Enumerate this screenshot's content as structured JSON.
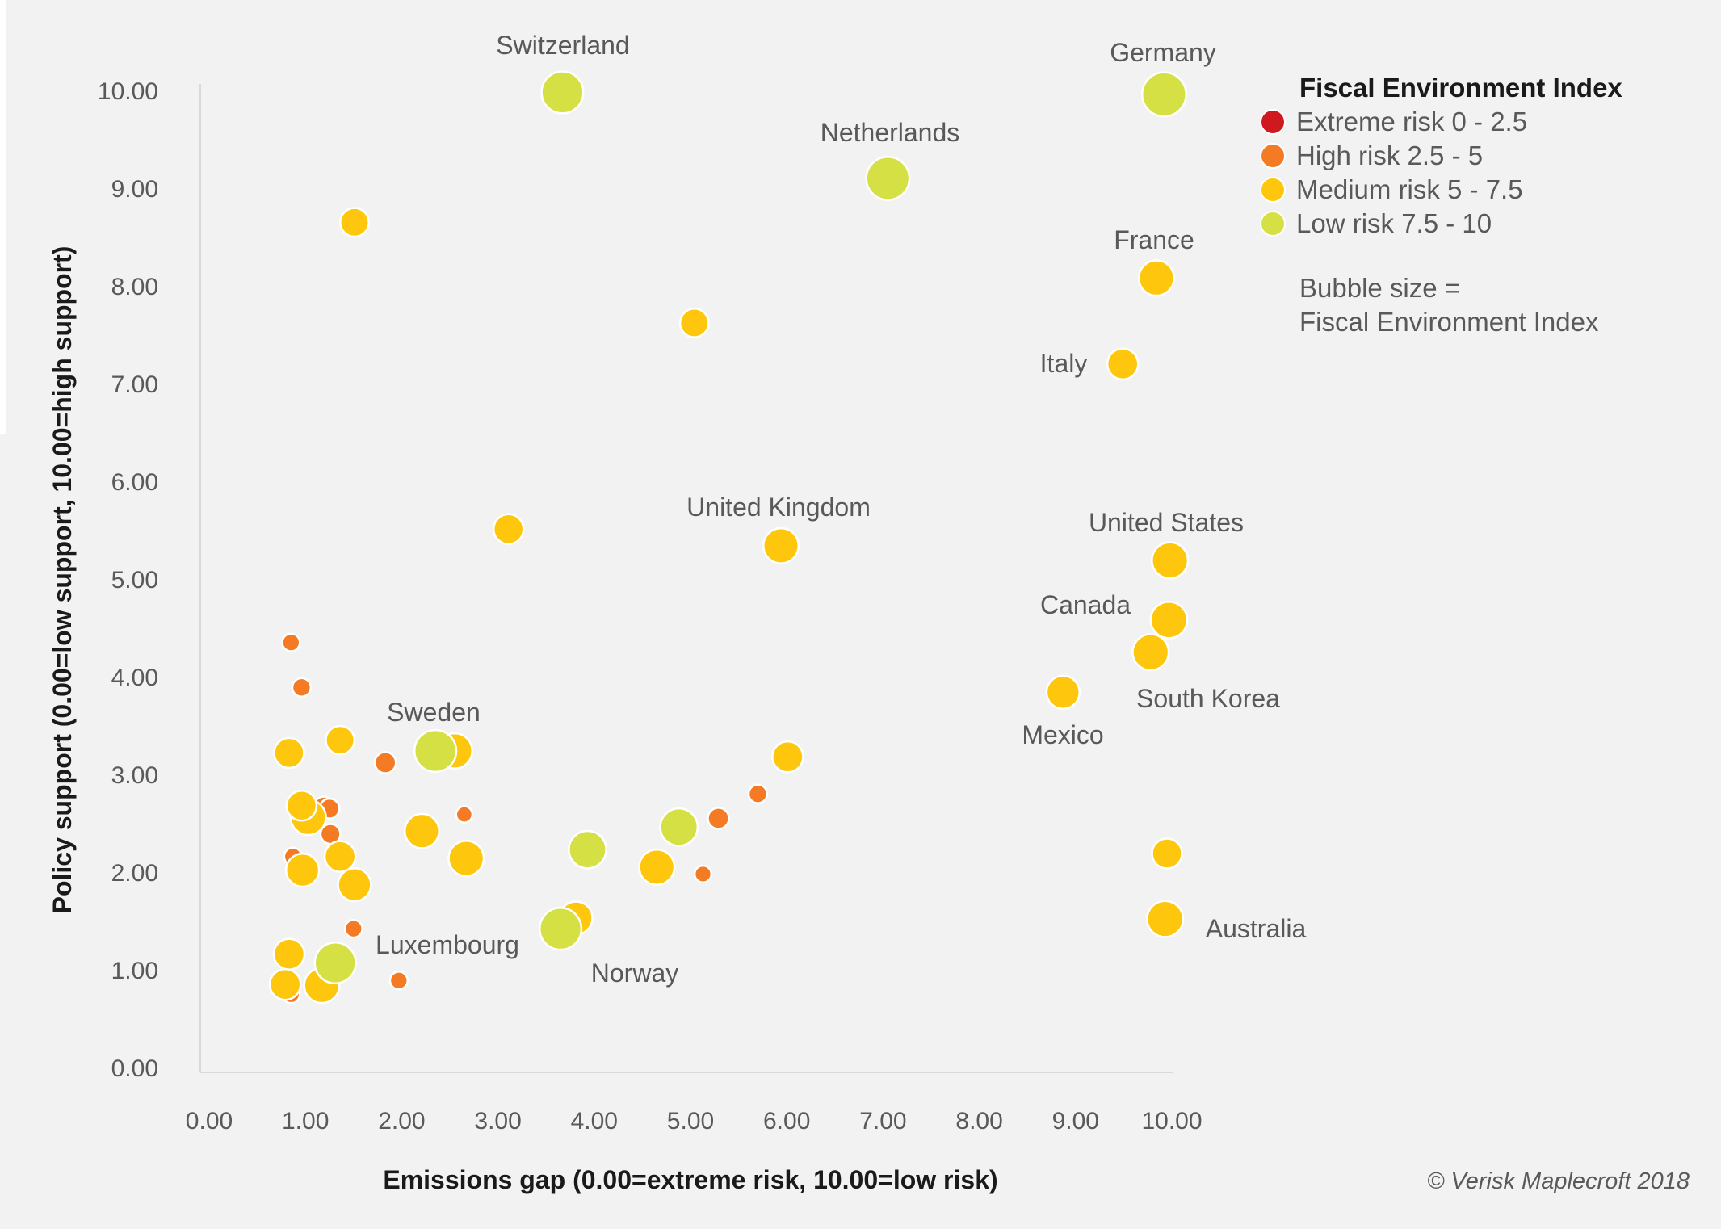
{
  "chart_data": {
    "type": "bubble",
    "xlabel": "Emissions gap (0.00=extreme risk, 10.00=low risk)",
    "ylabel": "Policy support (0.00=low support, 10.00=high support)",
    "xlim": [
      0,
      10
    ],
    "ylim": [
      0,
      10
    ],
    "x_ticks": [
      "0.00",
      "1.00",
      "2.00",
      "3.00",
      "4.00",
      "5.00",
      "6.00",
      "7.00",
      "8.00",
      "9.00",
      "10.00"
    ],
    "y_ticks": [
      "0.00",
      "1.00",
      "2.00",
      "3.00",
      "4.00",
      "5.00",
      "6.00",
      "7.00",
      "8.00",
      "9.00",
      "10.00"
    ],
    "grid": false,
    "legend": {
      "placement": "right",
      "title": "Fiscal Environment Index",
      "items": [
        {
          "label": "Extreme risk 0 - 2.5",
          "color": "#d0191f"
        },
        {
          "label": "High risk 2.5 - 5",
          "color": "#f47a24"
        },
        {
          "label": "Medium risk 5 - 7.5",
          "color": "#fec70d"
        },
        {
          "label": "Low risk 7.5 - 10",
          "color": "#d5e045"
        }
      ],
      "note_line1": "Bubble size =",
      "note_line2": "Fiscal Environment Index"
    },
    "points": [
      {
        "name": "",
        "x": 0.85,
        "y": 0.75,
        "size": 3.0
      },
      {
        "name": "",
        "x": 1.19,
        "y": 2.67,
        "size": 3.5
      },
      {
        "name": "",
        "x": 1.25,
        "y": 2.65,
        "size": 3.5
      },
      {
        "name": "",
        "x": 1.26,
        "y": 2.39,
        "size": 3.5
      },
      {
        "name": "",
        "x": 0.87,
        "y": 2.16,
        "size": 3.0
      },
      {
        "name": "",
        "x": 1.03,
        "y": 2.56,
        "size": 7.0
      },
      {
        "name": "",
        "x": 0.96,
        "y": 2.68,
        "size": 5.8
      },
      {
        "name": "",
        "x": 0.97,
        "y": 2.02,
        "size": 6.5
      },
      {
        "name": "",
        "x": 1.51,
        "y": 1.87,
        "size": 6.5
      },
      {
        "name": "",
        "x": 1.36,
        "y": 2.16,
        "size": 6.0
      },
      {
        "name": "",
        "x": 1.5,
        "y": 1.42,
        "size": 3.0
      },
      {
        "name": "",
        "x": 0.83,
        "y": 1.16,
        "size": 6.0
      },
      {
        "name": "",
        "x": 1.17,
        "y": 0.84,
        "size": 7.0
      },
      {
        "name": "",
        "x": 0.79,
        "y": 0.85,
        "size": 6.0
      },
      {
        "name": "Luxembourg",
        "x": 1.31,
        "y": 1.07,
        "size": 8.3
      },
      {
        "name": "",
        "x": 1.97,
        "y": 0.89,
        "size": 3.0
      },
      {
        "name": "",
        "x": 1.51,
        "y": 8.65,
        "size": 5.5
      },
      {
        "name": "",
        "x": 5.04,
        "y": 7.62,
        "size": 5.5
      },
      {
        "name": "",
        "x": 3.11,
        "y": 5.51,
        "size": 5.8
      },
      {
        "name": "",
        "x": 0.85,
        "y": 4.35,
        "size": 3.0
      },
      {
        "name": "",
        "x": 0.96,
        "y": 3.89,
        "size": 3.2
      },
      {
        "name": "",
        "x": 0.83,
        "y": 3.22,
        "size": 5.8
      },
      {
        "name": "",
        "x": 1.36,
        "y": 3.35,
        "size": 5.5
      },
      {
        "name": "",
        "x": 1.83,
        "y": 3.12,
        "size": 3.8
      },
      {
        "name": "",
        "x": 2.55,
        "y": 3.24,
        "size": 7.0
      },
      {
        "name": "Sweden",
        "x": 2.35,
        "y": 3.24,
        "size": 8.5
      },
      {
        "name": "",
        "x": 6.01,
        "y": 3.18,
        "size": 6.0
      },
      {
        "name": "",
        "x": 5.7,
        "y": 2.8,
        "size": 3.2
      },
      {
        "name": "",
        "x": 5.29,
        "y": 2.55,
        "size": 3.8
      },
      {
        "name": "",
        "x": 2.65,
        "y": 2.59,
        "size": 2.7
      },
      {
        "name": "",
        "x": 4.88,
        "y": 2.46,
        "size": 7.5
      },
      {
        "name": "",
        "x": 2.21,
        "y": 2.42,
        "size": 6.8
      },
      {
        "name": "",
        "x": 2.67,
        "y": 2.14,
        "size": 7.0
      },
      {
        "name": "",
        "x": 3.93,
        "y": 2.23,
        "size": 7.5
      },
      {
        "name": "",
        "x": 4.65,
        "y": 2.05,
        "size": 7.0
      },
      {
        "name": "",
        "x": 5.13,
        "y": 1.98,
        "size": 2.8
      },
      {
        "name": "",
        "x": 3.81,
        "y": 1.53,
        "size": 6.5
      },
      {
        "name": "Norway",
        "x": 3.65,
        "y": 1.42,
        "size": 8.5
      },
      {
        "name": "",
        "x": 9.95,
        "y": 2.19,
        "size": 5.8
      },
      {
        "name": "Switzerland",
        "x": 3.67,
        "y": 9.98,
        "size": 8.5
      },
      {
        "name": "Germany",
        "x": 9.92,
        "y": 9.96,
        "size": 9.0
      },
      {
        "name": "Netherlands",
        "x": 7.05,
        "y": 9.1,
        "size": 8.8
      },
      {
        "name": "France",
        "x": 9.84,
        "y": 8.08,
        "size": 7.0
      },
      {
        "name": "Italy",
        "x": 9.49,
        "y": 7.2,
        "size": 6.0
      },
      {
        "name": "United Kingdom",
        "x": 5.94,
        "y": 5.34,
        "size": 7.0
      },
      {
        "name": "United States",
        "x": 9.98,
        "y": 5.19,
        "size": 7.2
      },
      {
        "name": "Canada",
        "x": 9.97,
        "y": 4.58,
        "size": 7.3
      },
      {
        "name": "South Korea",
        "x": 9.78,
        "y": 4.25,
        "size": 7.2
      },
      {
        "name": "Mexico",
        "x": 8.87,
        "y": 3.84,
        "size": 6.5
      },
      {
        "name": "Australia",
        "x": 9.93,
        "y": 1.52,
        "size": 7.2
      }
    ]
  },
  "copyright": "© Verisk Maplecroft 2018"
}
